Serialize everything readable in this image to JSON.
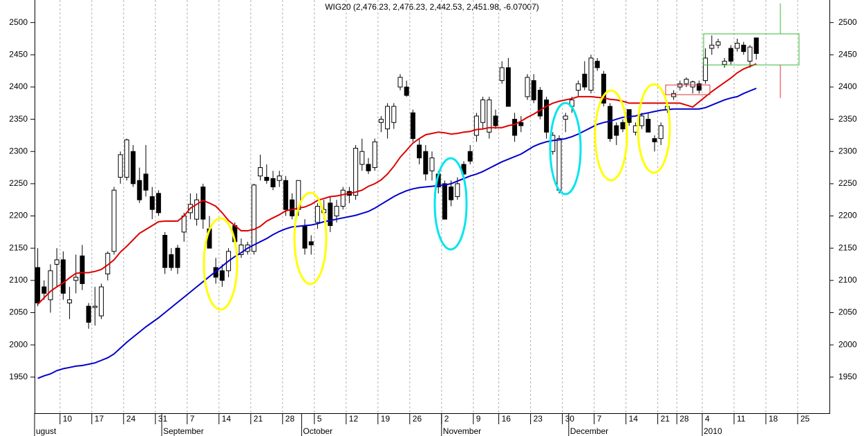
{
  "chart_data": {
    "type": "candlestick",
    "title": "WIG20 (2,476.23, 2,476.23, 2,442.53, 2,451.98, -6.07007)",
    "categories": [
      null,
      null,
      null,
      null,
      "10",
      null,
      null,
      null,
      null,
      "17",
      null,
      null,
      null,
      null,
      "24",
      null,
      null,
      null,
      null,
      "31",
      null,
      null,
      null,
      null,
      "7",
      null,
      null,
      null,
      null,
      "14",
      null,
      null,
      null,
      null,
      "21",
      null,
      null,
      null,
      null,
      "28",
      null,
      null,
      null,
      null,
      "5",
      null,
      null,
      null,
      null,
      "12",
      null,
      null,
      null,
      null,
      "19",
      null,
      null,
      null,
      null,
      "26",
      null,
      null,
      null,
      null,
      "2",
      null,
      null,
      null,
      null,
      "9",
      null,
      null,
      null,
      "16",
      null,
      null,
      null,
      null,
      "23",
      null,
      null,
      null,
      null,
      "30",
      null,
      null,
      null,
      null,
      "7",
      null,
      null,
      null,
      null,
      "14",
      null,
      null,
      null,
      null,
      "21",
      null,
      null,
      "28",
      null,
      null,
      null,
      "4",
      null,
      null,
      null,
      null,
      "11",
      null,
      null,
      null,
      null,
      "18",
      null,
      null,
      null,
      null,
      "25",
      null,
      null,
      null,
      null
    ],
    "month_labels": [
      "ugust",
      null,
      null,
      null,
      null,
      null,
      null,
      null,
      null,
      null,
      null,
      null,
      null,
      null,
      null,
      null,
      null,
      null,
      null,
      null,
      "September",
      null,
      null,
      null,
      null,
      null,
      null,
      null,
      null,
      null,
      null,
      null,
      null,
      null,
      null,
      null,
      null,
      null,
      null,
      null,
      null,
      null,
      "October",
      null,
      null,
      null,
      null,
      null,
      null,
      null,
      null,
      null,
      null,
      null,
      null,
      null,
      null,
      null,
      null,
      null,
      null,
      null,
      null,
      null,
      "November",
      null,
      null,
      null,
      null,
      null,
      null,
      null,
      null,
      null,
      null,
      null,
      null,
      null,
      null,
      null,
      null,
      null,
      null,
      null,
      "December",
      null,
      null,
      null,
      null,
      null,
      null,
      null,
      null,
      null,
      null,
      null,
      null,
      null,
      null,
      null,
      null,
      null,
      null,
      null,
      null,
      "2010",
      null,
      null,
      null,
      null,
      null,
      null,
      null,
      null,
      null,
      null,
      null,
      null,
      null,
      null,
      null,
      null,
      null,
      null,
      null
    ],
    "open": [
      2120,
      2090,
      2070,
      2125,
      2132,
      2065,
      2100,
      2138,
      2060,
      2058,
      2045,
      2110,
      2145,
      2260,
      2260,
      2300,
      2255,
      2265,
      2230,
      2235,
      2170,
      2140,
      2150,
      2175,
      2205,
      2195,
      2245,
      2180,
      2120,
      2115,
      2115,
      2185,
      2140,
      2145,
      2145,
      2262,
      2260,
      2258,
      2255,
      2255,
      2225,
      2210,
      2185,
      2160,
      2190,
      2205,
      2220,
      2200,
      2215,
      2238,
      2232,
      2280,
      2280,
      2275,
      2345,
      2335,
      2345,
      2400,
      2400,
      2360,
      2310,
      2300,
      2270,
      2265,
      2250,
      2245,
      2230,
      2280,
      2300,
      2325,
      2345,
      2330,
      2355,
      2410,
      2430,
      2350,
      2345,
      2385,
      2410,
      2395,
      2380,
      2300,
      2240,
      2350,
      2370,
      2395,
      2420,
      2395,
      2440,
      2420,
      2370,
      2340,
      2345,
      2365,
      2330,
      2340,
      2350,
      2320,
      2320,
      2365,
      2385,
      2400,
      2405,
      2400,
      2405,
      2410,
      2460,
      2465,
      2435,
      2460,
      2460,
      2465,
      2440,
      2476.23,
      null,
      null,
      null,
      null,
      null,
      null,
      null,
      null,
      null,
      null,
      null
    ],
    "high": [
      2150,
      2100,
      2125,
      2150,
      2145,
      2090,
      2140,
      2155,
      2065,
      2090,
      2095,
      2145,
      2245,
      2300,
      2320,
      2310,
      2275,
      2310,
      2245,
      2240,
      2175,
      2150,
      2155,
      2205,
      2235,
      2235,
      2250,
      2200,
      2135,
      2125,
      2150,
      2190,
      2165,
      2160,
      2250,
      2295,
      2280,
      2270,
      2270,
      2262,
      2235,
      2255,
      2195,
      2170,
      2220,
      2225,
      2230,
      2225,
      2245,
      2245,
      2310,
      2320,
      2290,
      2320,
      2355,
      2375,
      2375,
      2420,
      2410,
      2365,
      2320,
      2310,
      2300,
      2270,
      2255,
      2255,
      2260,
      2285,
      2310,
      2360,
      2385,
      2385,
      2365,
      2440,
      2445,
      2360,
      2355,
      2420,
      2420,
      2400,
      2385,
      2330,
      2325,
      2360,
      2385,
      2410,
      2440,
      2450,
      2445,
      2425,
      2375,
      2345,
      2350,
      2365,
      2345,
      2360,
      2360,
      2325,
      2345,
      2375,
      2395,
      2410,
      2415,
      2410,
      2410,
      2460,
      2480,
      2475,
      2445,
      2465,
      2475,
      2470,
      2465,
      2476.23,
      null,
      null,
      null,
      null,
      null,
      null,
      null,
      null,
      null,
      null,
      null
    ],
    "low": [
      2060,
      2070,
      2050,
      2090,
      2070,
      2040,
      2080,
      2085,
      2025,
      2030,
      2040,
      2100,
      2140,
      2250,
      2255,
      2245,
      2220,
      2230,
      2195,
      2200,
      2110,
      2115,
      2110,
      2160,
      2195,
      2185,
      2180,
      2150,
      2095,
      2090,
      2105,
      2155,
      2135,
      2140,
      2140,
      2255,
      2250,
      2240,
      2245,
      2200,
      2195,
      2200,
      2140,
      2140,
      2180,
      2195,
      2175,
      2190,
      2210,
      2220,
      2225,
      2270,
      2265,
      2270,
      2330,
      2320,
      2335,
      2395,
      2385,
      2315,
      2280,
      2255,
      2255,
      2235,
      2195,
      2215,
      2225,
      2255,
      2280,
      2315,
      2335,
      2320,
      2335,
      2405,
      2370,
      2315,
      2330,
      2380,
      2375,
      2350,
      2320,
      2295,
      2235,
      2330,
      2360,
      2385,
      2395,
      2390,
      2425,
      2370,
      2315,
      2310,
      2330,
      2340,
      2325,
      2335,
      2330,
      2300,
      2310,
      2360,
      2380,
      2395,
      2400,
      2390,
      2390,
      2405,
      2450,
      2460,
      2430,
      2435,
      2455,
      2450,
      2430,
      2442.53,
      null,
      null,
      null,
      null,
      null,
      null,
      null,
      null,
      null,
      null,
      null
    ],
    "close": [
      2065,
      2080,
      2115,
      2132,
      2080,
      2070,
      2105,
      2095,
      2035,
      2060,
      2090,
      2142,
      2240,
      2295,
      2318,
      2250,
      2225,
      2240,
      2210,
      2205,
      2120,
      2120,
      2120,
      2200,
      2218,
      2225,
      2195,
      2150,
      2105,
      2100,
      2145,
      2160,
      2155,
      2155,
      2248,
      2275,
      2255,
      2245,
      2262,
      2210,
      2200,
      2255,
      2150,
      2155,
      2215,
      2210,
      2185,
      2215,
      2240,
      2232,
      2305,
      2300,
      2270,
      2315,
      2350,
      2370,
      2370,
      2415,
      2387,
      2320,
      2290,
      2265,
      2290,
      2245,
      2195,
      2225,
      2250,
      2265,
      2285,
      2355,
      2380,
      2380,
      2340,
      2430,
      2370,
      2325,
      2340,
      2415,
      2380,
      2355,
      2330,
      2325,
      2320,
      2355,
      2380,
      2405,
      2400,
      2445,
      2430,
      2375,
      2320,
      2325,
      2335,
      2345,
      2340,
      2355,
      2330,
      2315,
      2340,
      2370,
      2390,
      2405,
      2412,
      2408,
      2395,
      2445,
      2465,
      2470,
      2440,
      2440,
      2468,
      2455,
      2462,
      2451.98,
      null,
      null,
      null,
      null,
      null,
      null,
      null,
      null,
      null,
      null,
      null
    ],
    "up_color": "#ffffff",
    "down_color": "#000000",
    "lines": [
      {
        "color": "#dd0000",
        "values": [
          2063,
          2073,
          2083,
          2090,
          2096,
          2104,
          2111,
          2112,
          2112,
          2114,
          2117,
          2124,
          2132,
          2144,
          2153,
          2163,
          2173,
          2179,
          2185,
          2191,
          2192,
          2192,
          2192,
          2200,
          2212,
          2218,
          2224,
          2220,
          2215,
          2205,
          2193,
          2185,
          2177,
          2177,
          2179,
          2184,
          2192,
          2197,
          2202,
          2208,
          2210,
          2212,
          2214,
          2218,
          2224,
          2227,
          2230,
          2231,
          2233,
          2235,
          2237,
          2240,
          2246,
          2250,
          2256,
          2265,
          2277,
          2291,
          2302,
          2313,
          2320,
          2326,
          2328,
          2330,
          2329,
          2327,
          2328,
          2330,
          2331,
          2334,
          2335,
          2337,
          2337,
          2337,
          2340,
          2342,
          2347,
          2353,
          2358,
          2364,
          2370,
          2375,
          2378,
          2380,
          2382,
          2385,
          2385,
          2385,
          2384,
          2383,
          2381,
          2380,
          2378,
          2375,
          2375,
          2375,
          2375,
          2375,
          2375,
          2375,
          2375,
          2375,
          2372,
          2369,
          2377,
          2385,
          2393,
          2400,
          2407,
          2414,
          2422,
          2428,
          2432,
          2436,
          null,
          null,
          null,
          null,
          null,
          null,
          null,
          null,
          null,
          null,
          null
        ]
      },
      {
        "color": "#0000cc",
        "values": [
          1948,
          1952,
          1955,
          1960,
          1963,
          1965,
          1967,
          1968,
          1970,
          1972,
          1976,
          1980,
          1986,
          1995,
          2004,
          2012,
          2020,
          2028,
          2035,
          2042,
          2050,
          2058,
          2066,
          2074,
          2082,
          2090,
          2098,
          2106,
          2114,
          2122,
          2130,
          2137,
          2143,
          2150,
          2155,
          2160,
          2165,
          2171,
          2176,
          2180,
          2183,
          2184,
          2185,
          2186,
          2188,
          2191,
          2193,
          2195,
          2197,
          2199,
          2201,
          2204,
          2207,
          2212,
          2218,
          2224,
          2230,
          2235,
          2239,
          2242,
          2244,
          2245,
          2246,
          2247,
          2248,
          2250,
          2254,
          2258,
          2262,
          2265,
          2269,
          2274,
          2279,
          2284,
          2288,
          2292,
          2296,
          2302,
          2308,
          2312,
          2315,
          2317,
          2318,
          2320,
          2323,
          2327,
          2332,
          2337,
          2342,
          2345,
          2347,
          2350,
          2353,
          2354,
          2355,
          2358,
          2360,
          2362,
          2364,
          2365,
          2366,
          2366,
          2366,
          2366,
          2366,
          2368,
          2372,
          2376,
          2380,
          2383,
          2385,
          2390,
          2394,
          2398,
          null,
          null,
          null,
          null,
          null,
          null,
          null,
          null,
          null,
          null,
          null
        ]
      }
    ],
    "ylim": [
      1894,
      2535
    ],
    "yticks": [
      1950,
      2000,
      2050,
      2100,
      2150,
      2200,
      2250,
      2300,
      2350,
      2400,
      2450,
      2500
    ],
    "grid": true
  }
}
